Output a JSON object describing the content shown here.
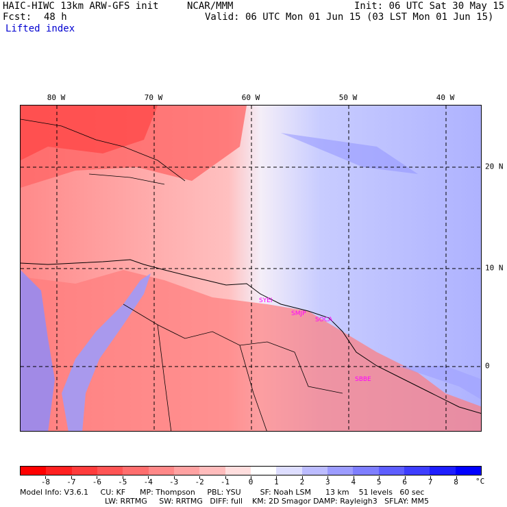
{
  "header": {
    "model_line": "HAIC-HIWC 13km ARW-GFS init",
    "org": "NCAR/MMM",
    "init": "Init: 06 UTC Sat 30 May 15",
    "fcst_label": "Fcst:",
    "fcst_value": "48 h",
    "valid": "Valid: 06 UTC Mon 01 Jun 15 (03 LST Mon 01 Jun 15)",
    "field": "Lifted index"
  },
  "map": {
    "longitude_labels": [
      "80 W",
      "70 W",
      "60 W",
      "50 W",
      "40 W"
    ],
    "latitude_labels": [
      "20 N",
      "10 N",
      "0"
    ],
    "stations": [
      "SYEI",
      "SMJP",
      "SOCA",
      "SBBE"
    ]
  },
  "colorbar": {
    "labels": [
      "-8",
      "-7",
      "-6",
      "-5",
      "-4",
      "-3",
      "-2",
      "-1",
      "0",
      "1",
      "2",
      "3",
      "4",
      "5",
      "6",
      "7",
      "8"
    ],
    "unit": "°C",
    "colors": [
      "#ff0000",
      "#ff2020",
      "#ff3c3c",
      "#ff5454",
      "#ff6e6e",
      "#ff8888",
      "#ffa2a2",
      "#ffbcbc",
      "#ffdede",
      "#ffffff",
      "#dedeff",
      "#bcbcff",
      "#9c9cff",
      "#7e7eff",
      "#5e5eff",
      "#3e3eff",
      "#1e1eff",
      "#0000ff"
    ]
  },
  "model_info": {
    "line1": "Model Info: V3.6.1     CU: KF      MP: Thompson     PBL: YSU        SF: Noah LSM      13 km    51 levels   60 sec",
    "line2": "LW: RRTMG     SW: RRTMG   DIFF: full    KM: 2D Smagor DAMP: Rayleigh3   SFLAY: MM5"
  }
}
